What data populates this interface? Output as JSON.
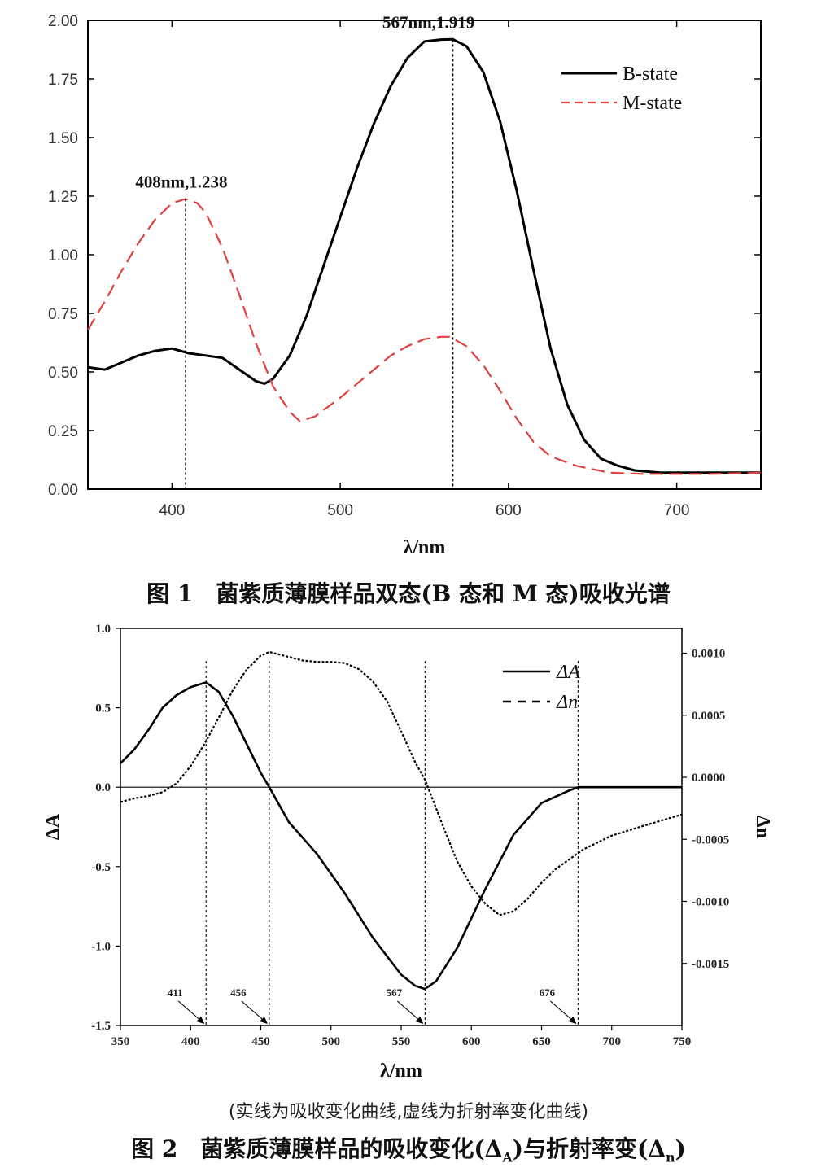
{
  "chart_data": [
    {
      "type": "line",
      "xlabel": "λ/nm",
      "ylabel": "",
      "xlim": [
        350,
        750
      ],
      "ylim": [
        0,
        2
      ],
      "x_ticks": [
        "400",
        "500",
        "600",
        "700"
      ],
      "y_ticks": [
        "0.00",
        "0.25",
        "0.50",
        "0.75",
        "1.00",
        "1.25",
        "1.50",
        "1.75",
        "2.00"
      ],
      "legend_position": "top-right",
      "grid": false,
      "annotations": [
        {
          "text": "567nm,1.919",
          "x": 567,
          "y": 1.919
        },
        {
          "text": "408nm,1.238",
          "x": 408,
          "y": 1.238
        }
      ],
      "series": [
        {
          "name": "B-state",
          "color": "#000000",
          "style": "solid",
          "x": [
            350,
            360,
            370,
            380,
            390,
            400,
            410,
            420,
            430,
            440,
            450,
            455,
            460,
            470,
            480,
            490,
            500,
            510,
            520,
            530,
            540,
            550,
            560,
            567,
            575,
            585,
            595,
            605,
            615,
            625,
            635,
            645,
            655,
            665,
            675,
            690,
            700,
            720,
            750
          ],
          "y": [
            0.52,
            0.51,
            0.54,
            0.57,
            0.59,
            0.6,
            0.58,
            0.57,
            0.56,
            0.51,
            0.46,
            0.45,
            0.47,
            0.57,
            0.74,
            0.95,
            1.16,
            1.37,
            1.56,
            1.72,
            1.84,
            1.91,
            1.918,
            1.919,
            1.89,
            1.78,
            1.57,
            1.27,
            0.93,
            0.6,
            0.36,
            0.21,
            0.13,
            0.1,
            0.08,
            0.07,
            0.07,
            0.07,
            0.07
          ]
        },
        {
          "name": "M-state",
          "color": "#e04040",
          "style": "dashed",
          "x": [
            350,
            360,
            370,
            380,
            390,
            400,
            408,
            415,
            420,
            430,
            440,
            450,
            460,
            470,
            476,
            485,
            500,
            510,
            520,
            530,
            540,
            550,
            560,
            565,
            575,
            585,
            595,
            605,
            615,
            625,
            640,
            660,
            680,
            700,
            720,
            750
          ],
          "y": [
            0.68,
            0.8,
            0.93,
            1.05,
            1.15,
            1.22,
            1.238,
            1.22,
            1.18,
            1.03,
            0.83,
            0.62,
            0.44,
            0.33,
            0.29,
            0.31,
            0.39,
            0.45,
            0.51,
            0.57,
            0.61,
            0.64,
            0.65,
            0.65,
            0.61,
            0.53,
            0.42,
            0.3,
            0.2,
            0.14,
            0.1,
            0.07,
            0.065,
            0.065,
            0.065,
            0.07
          ]
        }
      ]
    },
    {
      "type": "line",
      "xlabel": "λ/nm",
      "ylabel": "ΔA",
      "y2label": "Δn",
      "xlim": [
        350,
        750
      ],
      "ylim": [
        -1.5,
        1.0
      ],
      "y2lim": [
        -0.002,
        0.0012
      ],
      "x_ticks": [
        "350",
        "400",
        "450",
        "500",
        "550",
        "600",
        "650",
        "700",
        "750"
      ],
      "y_ticks": [
        "1.0",
        "0.5",
        "0.0",
        "-0.5",
        "-1.0",
        "-1.5"
      ],
      "y2_ticks": [
        "0.0010",
        "0.0005",
        "0.0000",
        "-0.0005",
        "-0.0010",
        "-0.0015"
      ],
      "legend_position": "top-right",
      "grid": false,
      "markers": [
        "411",
        "456",
        "567",
        "676"
      ],
      "series": [
        {
          "name": "ΔA",
          "color": "#000000",
          "style": "solid",
          "x": [
            350,
            360,
            370,
            380,
            390,
            400,
            411,
            420,
            430,
            440,
            450,
            456,
            470,
            490,
            510,
            530,
            550,
            560,
            567,
            575,
            590,
            610,
            630,
            650,
            670,
            676,
            690,
            710,
            750
          ],
          "y": [
            0.15,
            0.24,
            0.36,
            0.5,
            0.58,
            0.63,
            0.66,
            0.6,
            0.45,
            0.27,
            0.09,
            0.0,
            -0.22,
            -0.42,
            -0.67,
            -0.95,
            -1.18,
            -1.25,
            -1.27,
            -1.22,
            -1.01,
            -0.64,
            -0.3,
            -0.1,
            -0.02,
            0.0,
            0.0,
            0.0,
            0.0
          ]
        },
        {
          "name": "Δn",
          "color": "#000000",
          "style": "dashed",
          "x": [
            350,
            360,
            370,
            380,
            390,
            400,
            410,
            420,
            430,
            440,
            450,
            456,
            470,
            480,
            490,
            500,
            510,
            520,
            530,
            540,
            550,
            560,
            567,
            580,
            590,
            600,
            610,
            620,
            630,
            640,
            650,
            660,
            680,
            700,
            720,
            750
          ],
          "y": [
            -0.0002,
            -0.00017,
            -0.00015,
            -0.00012,
            -5e-05,
            9e-05,
            0.00027,
            0.00048,
            0.0007,
            0.00087,
            0.00098,
            0.00101,
            0.00097,
            0.00094,
            0.00093,
            0.00093,
            0.00092,
            0.00087,
            0.00077,
            0.00061,
            0.00037,
            0.00012,
            -2e-05,
            -0.0004,
            -0.00068,
            -0.00088,
            -0.00102,
            -0.00111,
            -0.00108,
            -0.00098,
            -0.00085,
            -0.00074,
            -0.00058,
            -0.00047,
            -0.0004,
            -0.0003
          ]
        }
      ]
    }
  ],
  "captions": {
    "fig1": "图 1　菌紫质薄膜样品双态(B 态和 M 态)吸收光谱",
    "fig2_note": "(实线为吸收变化曲线,虚线为折射率变化曲线)",
    "fig2": "图 2　菌紫质薄膜样品的吸收变化(Δ",
    "fig2_sub_a": "A",
    "fig2_mid": ")与折射率变(Δ",
    "fig2_sub_n": "n",
    "fig2_end": ")"
  }
}
